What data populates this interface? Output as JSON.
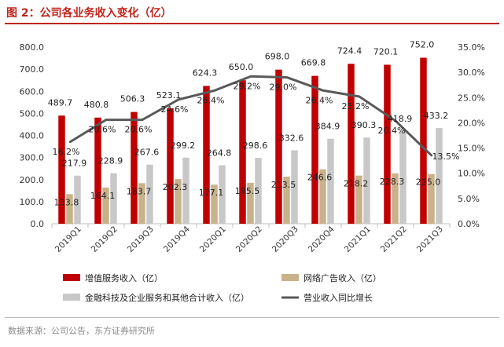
{
  "figure": {
    "title": "图 2：公司各业务收入变化（亿）",
    "source": "数据来源：公司公告，东方证券研究所"
  },
  "chart_data": {
    "type": "bar",
    "categories": [
      "2019Q1",
      "2019Q2",
      "2019Q3",
      "2019Q4",
      "2020Q1",
      "2020Q2",
      "2020Q3",
      "2020Q4",
      "2021Q1",
      "2021Q2",
      "2021Q3"
    ],
    "series": [
      {
        "name": "增值服务收入（亿）",
        "kind": "bar",
        "axis": "left",
        "color": "#c00000",
        "values": [
          489.7,
          480.8,
          506.3,
          523.1,
          624.3,
          650.0,
          698.0,
          669.8,
          724.4,
          720.1,
          752.0
        ]
      },
      {
        "name": "网络广告收入（亿）",
        "kind": "bar",
        "axis": "left",
        "color": "#c8b28a",
        "values": [
          133.8,
          164.1,
          183.7,
          202.3,
          177.1,
          185.5,
          213.5,
          246.6,
          218.2,
          228.3,
          225.0
        ]
      },
      {
        "name": "金融科技及企业服务和其他合计收入（亿）",
        "kind": "bar",
        "axis": "left",
        "color": "#c8c8c8",
        "values": [
          217.9,
          228.9,
          267.6,
          299.2,
          264.8,
          298.6,
          332.6,
          384.9,
          390.3,
          418.9,
          433.2
        ]
      },
      {
        "name": "营业收入同比增长",
        "kind": "line",
        "axis": "right",
        "color": "#595959",
        "values": [
          16.2,
          20.6,
          20.6,
          24.6,
          26.4,
          29.2,
          29.0,
          26.4,
          25.2,
          20.4,
          13.5
        ]
      }
    ],
    "labels": {
      "s0": [
        "489.7",
        "480.8",
        "506.3",
        "523.1",
        "624.3",
        "650.0",
        "698.0",
        "669.8",
        "724.4",
        "720.1",
        "752.0"
      ],
      "s1": [
        "133.8",
        "164.1",
        "183.7",
        "202.3",
        "177.1",
        "185.5",
        "213.5",
        "246.6",
        "218.2",
        "228.3",
        "225.0"
      ],
      "s2": [
        "217.9",
        "228.9",
        "267.6",
        "299.2",
        "264.8",
        "298.6",
        "332.6",
        "384.9",
        "390.3",
        "418.9",
        "433.2"
      ],
      "s3": [
        "16.2%",
        "20.6%",
        "20.6%",
        "24.6%",
        "26.4%",
        "29.2%",
        "29.0%",
        "26.4%",
        "25.2%",
        "20.4%",
        "13.5%"
      ]
    },
    "y_left": {
      "min": 0,
      "max": 800,
      "step": 100,
      "ticks": [
        "0.0",
        "100.0",
        "200.0",
        "300.0",
        "400.0",
        "500.0",
        "600.0",
        "700.0",
        "800.0"
      ]
    },
    "y_right": {
      "min": 0,
      "max": 35,
      "step": 5,
      "ticks": [
        "0.0%",
        "5.0%",
        "10.0%",
        "15.0%",
        "20.0%",
        "25.0%",
        "30.0%",
        "35.0%"
      ]
    },
    "grid": false,
    "legend_position": "bottom"
  }
}
